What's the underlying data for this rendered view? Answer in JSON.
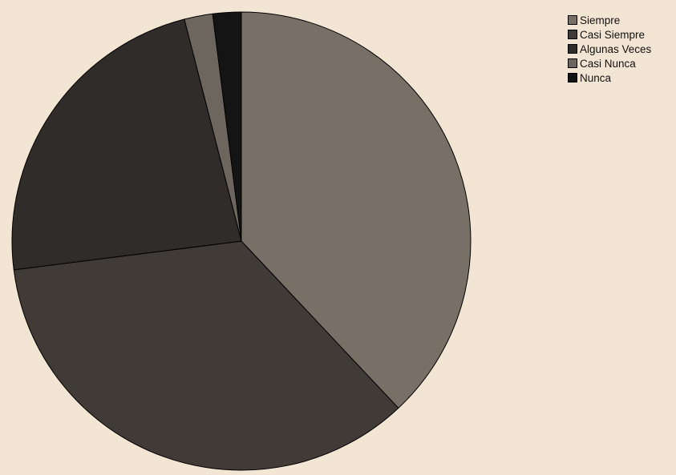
{
  "chart_data": {
    "type": "pie",
    "title": "",
    "series": [
      {
        "categories": [
          "Siempre",
          "Casi Siempre",
          "Algunas Veces",
          "Casi Nunca",
          "Nunca"
        ],
        "values": [
          38,
          35,
          23,
          2,
          2
        ],
        "colors": [
          "#787067",
          "#403b37",
          "#302c29",
          "#6c665e",
          "#141414"
        ]
      }
    ],
    "legend": {
      "position": "top-right",
      "entries": [
        "Siempre",
        "Casi Siempre",
        "Algunas Veces",
        "Casi Nunca",
        "Nunca"
      ]
    },
    "start_angle_deg": 0,
    "direction": "clockwise"
  },
  "colors": {
    "background": "#f3e5d4",
    "slice_stroke": "#000000"
  }
}
